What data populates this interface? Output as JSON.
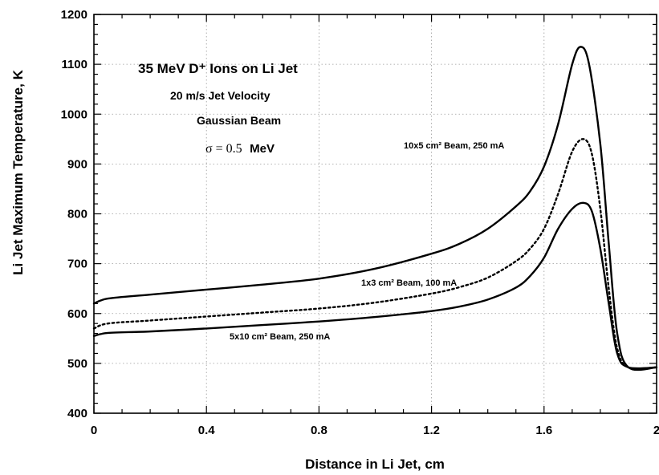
{
  "chart_data": {
    "type": "line",
    "title": "35 MeV D⁺ Ions on Li Jet",
    "subtitle_lines": [
      "20 m/s Jet Velocity",
      "Gaussian Beam"
    ],
    "sigma_label": {
      "symbol_text": "σ = 0.5",
      "unit_text": "MeV"
    },
    "xlabel": "Distance in Li Jet, cm",
    "ylabel": "Li Jet Maximum Temperature, K",
    "xlim": [
      0,
      2
    ],
    "ylim": [
      400,
      1200
    ],
    "x_ticks": [
      0,
      0.4,
      0.8,
      1.2,
      1.6,
      2
    ],
    "x_tick_labels": [
      "0",
      "0.4",
      "0.8",
      "1.2",
      "1.6",
      "2"
    ],
    "y_ticks": [
      400,
      500,
      600,
      700,
      800,
      900,
      1000,
      1100,
      1200
    ],
    "y_tick_labels": [
      "400",
      "500",
      "600",
      "700",
      "800",
      "900",
      "1000",
      "1100",
      "1200"
    ],
    "grid": true,
    "legend": "inline-labels",
    "series": [
      {
        "name": "10x5 cm² Beam, 250 mA",
        "style": "solid",
        "color": "#000000",
        "x": [
          0,
          0.05,
          0.2,
          0.4,
          0.6,
          0.8,
          1.0,
          1.2,
          1.3,
          1.4,
          1.5,
          1.55,
          1.6,
          1.65,
          1.7,
          1.73,
          1.76,
          1.8,
          1.83,
          1.86,
          1.9,
          2.0
        ],
        "y": [
          620,
          630,
          638,
          648,
          658,
          670,
          690,
          720,
          740,
          770,
          815,
          845,
          895,
          980,
          1100,
          1135,
          1100,
          940,
          740,
          560,
          492,
          492
        ]
      },
      {
        "name": "1x3 cm² Beam, 100 mA",
        "style": "dotted",
        "color": "#000000",
        "x": [
          0,
          0.05,
          0.2,
          0.4,
          0.6,
          0.8,
          1.0,
          1.2,
          1.3,
          1.4,
          1.5,
          1.55,
          1.6,
          1.65,
          1.7,
          1.74,
          1.77,
          1.8,
          1.83,
          1.86,
          1.9,
          2.0
        ],
        "y": [
          570,
          580,
          586,
          594,
          602,
          610,
          622,
          640,
          653,
          672,
          705,
          730,
          770,
          840,
          925,
          950,
          920,
          810,
          650,
          530,
          492,
          492
        ]
      },
      {
        "name": "5x10 cm² Beam, 250 mA",
        "style": "solid",
        "color": "#000000",
        "x": [
          0,
          0.05,
          0.2,
          0.4,
          0.6,
          0.8,
          1.0,
          1.2,
          1.3,
          1.4,
          1.5,
          1.55,
          1.6,
          1.65,
          1.7,
          1.74,
          1.77,
          1.8,
          1.83,
          1.86,
          1.9,
          2.0
        ],
        "y": [
          555,
          561,
          564,
          570,
          577,
          584,
          593,
          605,
          614,
          628,
          652,
          675,
          712,
          770,
          810,
          822,
          805,
          730,
          620,
          520,
          492,
          492
        ]
      }
    ]
  }
}
